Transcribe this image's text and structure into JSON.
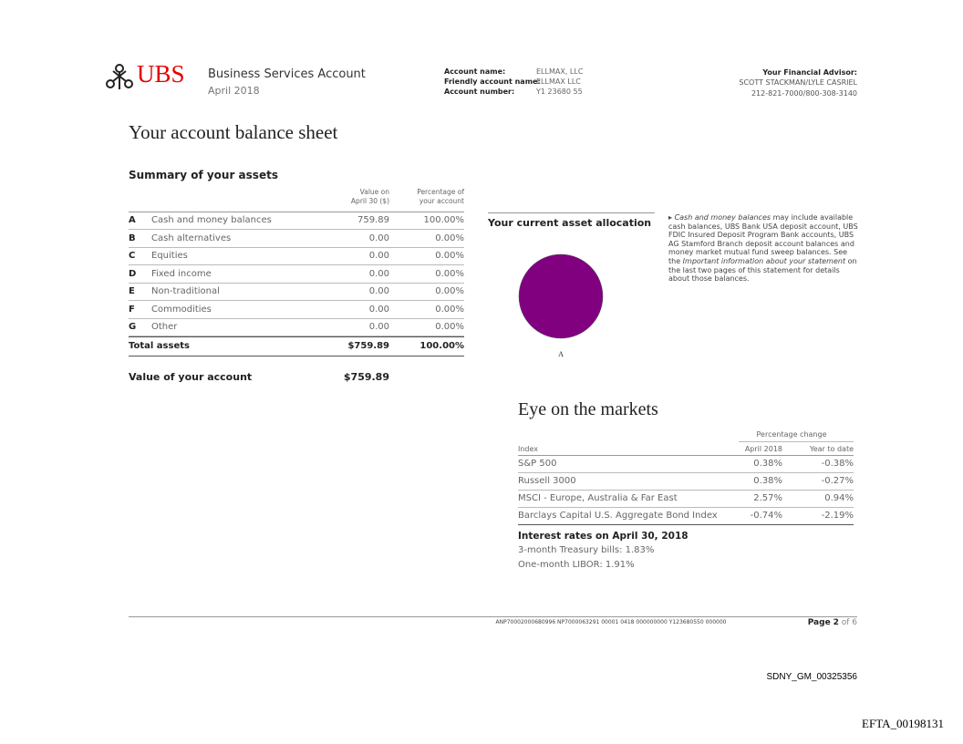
{
  "header": {
    "logo": "UBS",
    "account_type": "Business Services Account",
    "period": "April 2018",
    "account_fields": [
      {
        "label": "Account name:",
        "value": "ELLMAX, LLC"
      },
      {
        "label": "Friendly account name:",
        "value": "ELLMAX LLC"
      },
      {
        "label": "Account number:",
        "value": "Y1 23680 55"
      }
    ],
    "advisor": {
      "title": "Your Financial Advisor:",
      "name": "SCOTT STACKMAN/LYLE CASRIEL",
      "phone": "212-821-7000/800-308-3140"
    }
  },
  "page_title": "Your account balance sheet",
  "summary": {
    "title": "Summary of your assets",
    "columns": [
      [
        "Value on",
        "April 30 ($)"
      ],
      [
        "Percentage of",
        "your account"
      ]
    ],
    "rows": [
      [
        "A",
        "Cash and money balances",
        "759.89",
        "100.00%"
      ],
      [
        "B",
        "Cash alternatives",
        "0.00",
        "0.00%"
      ],
      [
        "C",
        "Equities",
        "0.00",
        "0.00%"
      ],
      [
        "D",
        "Fixed income",
        "0.00",
        "0.00%"
      ],
      [
        "E",
        "Non-traditional",
        "0.00",
        "0.00%"
      ],
      [
        "F",
        "Commodities",
        "0.00",
        "0.00%"
      ],
      [
        "G",
        "Other",
        "0.00",
        "0.00%"
      ]
    ],
    "total": [
      "Total assets",
      "$759.89",
      "100.00%"
    ],
    "account_value": [
      "Value of your account",
      "$759.89"
    ]
  },
  "allocation": {
    "title": "Your current asset allocation",
    "slice_label": "A"
  },
  "note": [
    "Cash and money balances",
    " may include available cash balances, UBS Bank USA deposit account, UBS FDIC Insured Deposit Program Bank accounts, UBS AG Stamford Branch deposit account balances and money market mutual fund sweep balances. See the ",
    "Important information about your statement",
    " on the last two pages of this statement for details about those balances."
  ],
  "markets": {
    "title": "Eye on the markets",
    "group_header": "Percentage change",
    "columns": [
      "Index",
      "April 2018",
      "Year to date"
    ],
    "rows": [
      [
        "S&P 500",
        "0.38%",
        "-0.38%"
      ],
      [
        "Russell 3000",
        "0.38%",
        "-0.27%"
      ],
      [
        "MSCI - Europe, Australia & Far East",
        "2.57%",
        "0.94%"
      ],
      [
        "Barclays Capital U.S. Aggregate Bond Index",
        "-0.74%",
        "-2.19%"
      ]
    ]
  },
  "interest": {
    "title": "Interest rates on April 30, 2018",
    "lines": [
      "3-month Treasury bills: 1.83%",
      "One-month LIBOR: 1.91%"
    ]
  },
  "footer": {
    "code": "ANP70002000680996 NP7000063291 00001 0418 000000000 Y123680550 000000",
    "page": [
      "Page",
      "2",
      "of",
      "6"
    ],
    "bates": "SDNY_GM_00325356",
    "efta": "EFTA_00198131"
  }
}
